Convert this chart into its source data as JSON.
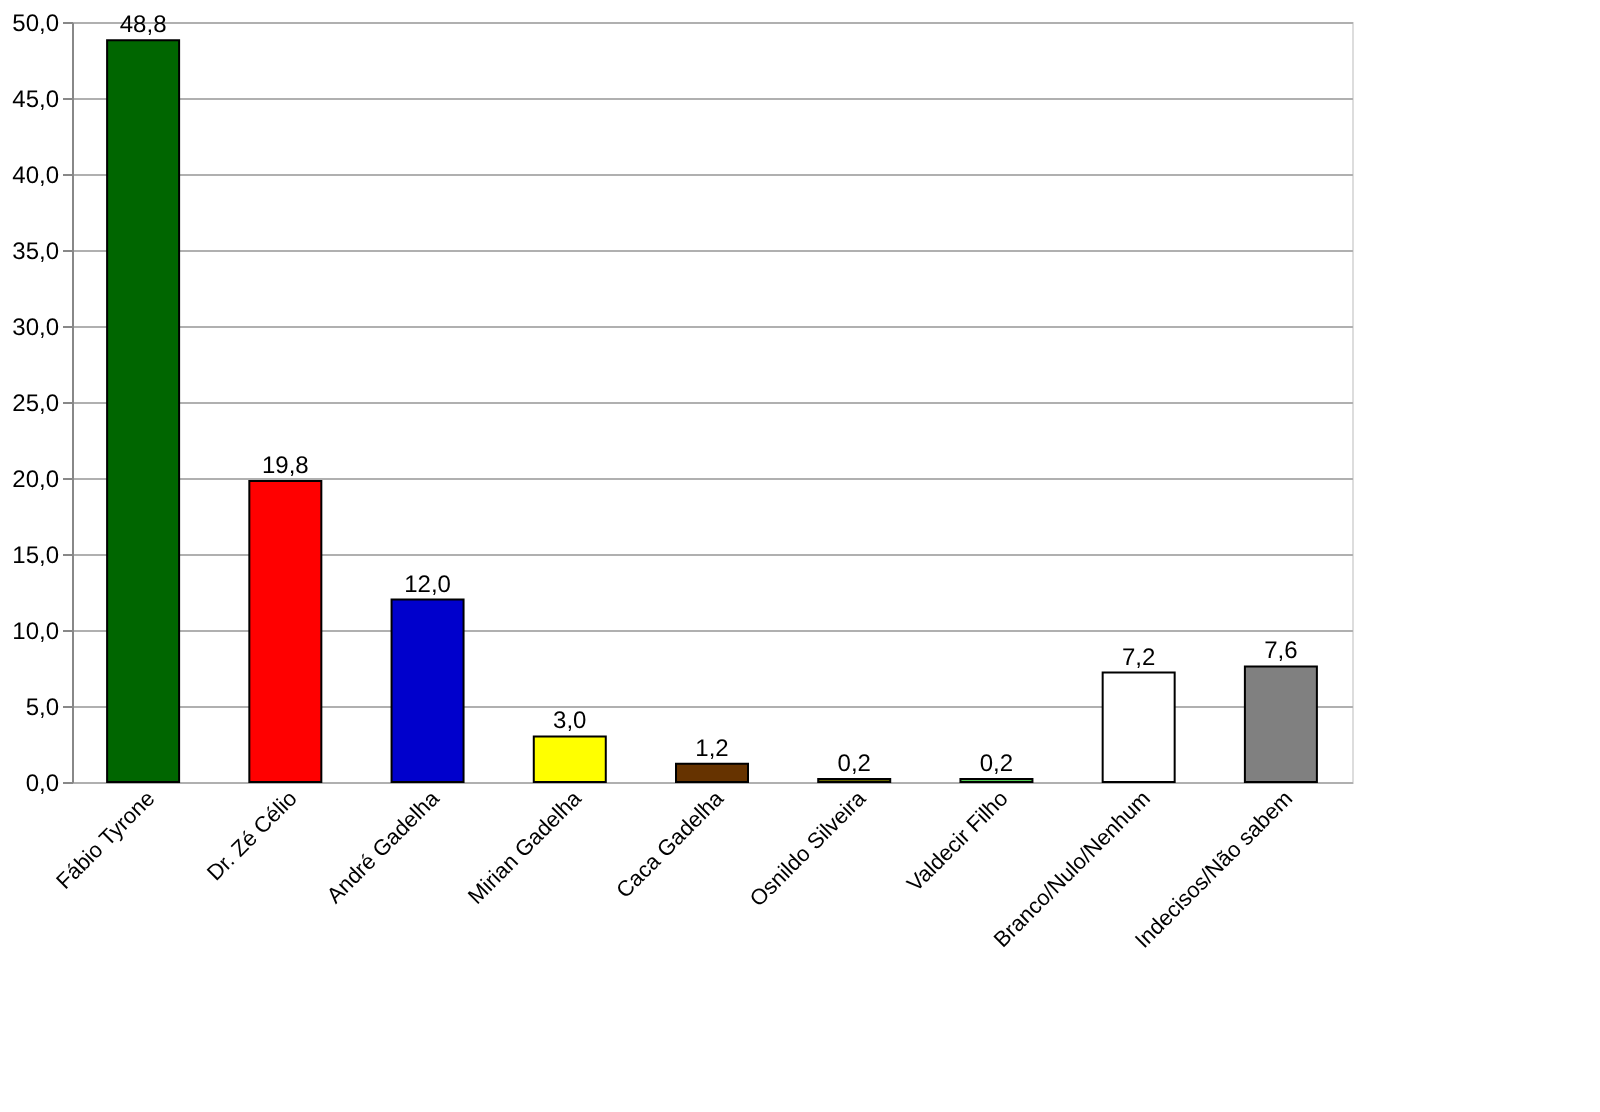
{
  "chart_data": {
    "type": "bar",
    "categories": [
      "Fábio Tyrone",
      "Dr. Zé Célio",
      "André Gadelha",
      "Mirian Gadelha",
      "Caca Gadelha",
      "Osnildo Silveira",
      "Valdecir Filho",
      "Branco/Nulo/Nenhum",
      "Indecisos/Não sabem"
    ],
    "values": [
      48.8,
      19.8,
      12.0,
      3.0,
      1.2,
      0.2,
      0.2,
      7.2,
      7.6
    ],
    "colors": [
      "#006600",
      "#ff0000",
      "#0000cc",
      "#ffff00",
      "#663300",
      "#666600",
      "#55cc55",
      "#ffffff",
      "#808080"
    ],
    "value_labels": [
      "48,8",
      "19,8",
      "12,0",
      "3,0",
      "1,2",
      "0,2",
      "0,2",
      "7,2",
      "7,6"
    ],
    "ylim": [
      0,
      50
    ],
    "yticks": [
      {
        "value": 0,
        "label": "0,0"
      },
      {
        "value": 5,
        "label": "5,0"
      },
      {
        "value": 10,
        "label": "10,0"
      },
      {
        "value": 15,
        "label": "15,0"
      },
      {
        "value": 20,
        "label": "20,0"
      },
      {
        "value": 25,
        "label": "25,0"
      },
      {
        "value": 30,
        "label": "30,0"
      },
      {
        "value": 35,
        "label": "35,0"
      },
      {
        "value": 40,
        "label": "40,0"
      },
      {
        "value": 45,
        "label": "45,0"
      },
      {
        "value": 50,
        "label": "50,0"
      }
    ],
    "grid": "y"
  }
}
